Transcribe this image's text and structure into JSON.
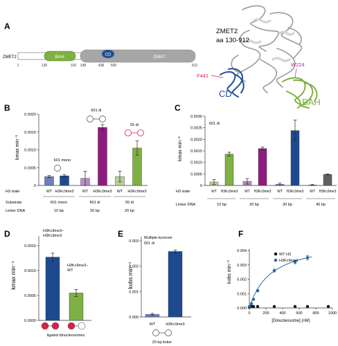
{
  "panel_letters": [
    "A",
    "B",
    "C",
    "D",
    "E",
    "F"
  ],
  "colors": {
    "bah": "#7fb043",
    "cd": "#1f4e96",
    "dnmt": "#a6a6a6",
    "wt_blue": "#6e7fbf",
    "navy": "#1d4a8f",
    "purple": "#8e1c7f",
    "light_purple": "#b38dc4",
    "green": "#7fb043",
    "light_green": "#b8cf92",
    "grey": "#606060",
    "light_grey": "#c0c0c0",
    "red_nuc": "#d8204c",
    "f441": "#d8204c",
    "w224": "#b4288a"
  },
  "panel_a": {
    "protein_name": "ZMET2",
    "domains": {
      "bah": "BAH",
      "cd": "CD",
      "dnmt": "DNMT"
    },
    "positions": [
      "1",
      "130",
      "310",
      "338",
      "438",
      "500",
      "912"
    ],
    "structure_title_1": "ZMET2",
    "structure_title_2": "aa 130-912",
    "residue_f441": "F441",
    "residue_w224": "W224",
    "label_cd": "CD",
    "label_bah": "BAH"
  },
  "panel_b": {
    "ylabel": "kmax min⁻¹",
    "y_ticks": [
      "0",
      "0.0005",
      "0.0010",
      "0.0015",
      "0.0020"
    ],
    "row_labels": {
      "h3_state": "H3 state",
      "substrate": "Substrate",
      "linker": "Linker DNA"
    },
    "annotations": {
      "mono": "601 mono",
      "di": "601 di",
      "ss": "55 di"
    },
    "groups": [
      {
        "substrate": "601 mono",
        "linker": "10 bp"
      },
      {
        "substrate": "601 di",
        "linker": "20 bp"
      },
      {
        "substrate": "55 di",
        "linker": "20 bp"
      }
    ],
    "bar_labels": [
      "WT",
      "H3Kc9me3",
      "WT",
      "H3Kc9me3",
      "WT",
      "H3Kc9me3"
    ]
  },
  "panel_c": {
    "ylabel": "kmax min⁻¹",
    "y_ticks": [
      "0",
      "0.0005",
      "0.0010",
      "0.0015",
      "0.0020",
      "0.0025",
      "0.0030"
    ],
    "annotation": "601 di",
    "row_labels": {
      "h3_state": "H3 state",
      "linker": "Linker DNA"
    },
    "linkers": [
      "10 bp",
      "20 bp",
      "30 bp",
      "40 bp"
    ],
    "bar_labels": [
      "WT",
      "H3Kc9me3",
      "WT",
      "H3Kc9me3",
      "WT",
      "H3Kc9me3",
      "WT",
      "H3Kc9me3"
    ]
  },
  "panel_d": {
    "ylabel": "kmax min⁻¹",
    "y_ticks": [
      "0.0000",
      "0.0005",
      "0.0010",
      "0.0015"
    ],
    "label_bar1_line1": "H3Kc9me3–",
    "label_bar1_line2": "H3Kc9me3",
    "label_bar2_line1": "H3Kc9me3–",
    "label_bar2_line2": "WT",
    "xlabel": "ligated dinucleosomes"
  },
  "panel_e": {
    "ylabel": "kobs min⁻¹",
    "y_ticks": [
      "0.000",
      "0.001",
      "0.002",
      "0.003"
    ],
    "annotation_line1": "Multiple-turnover",
    "annotation_line2": "601 di",
    "bar_labels": [
      "WT",
      "H3Kc9me3"
    ],
    "xlabel": "20 bp linker"
  },
  "panel_f": {
    "ylabel": "kobs min⁻¹",
    "xlabel": "[Dinucleosome] (nM)",
    "y_ticks": [
      "0.000",
      "0.001",
      "0.002",
      "0.003",
      "0.004"
    ],
    "x_ticks": [
      "0",
      "200",
      "400",
      "600",
      "800",
      "1000"
    ],
    "legend": [
      "WT H3",
      "H3Kc9me3"
    ]
  },
  "chart_data": [
    {
      "type": "bar",
      "panel": "B",
      "ylim": [
        0,
        0.002
      ],
      "categories": [
        "WT",
        "H3Kc9me3",
        "WT",
        "H3Kc9me3",
        "WT",
        "H3Kc9me3"
      ],
      "values": [
        0.00025,
        0.00027,
        0.0002,
        0.00163,
        0.00025,
        0.00105
      ],
      "errors": [
        3e-05,
        3e-05,
        0.0002,
        8e-05,
        0.00015,
        0.0002
      ],
      "colors": [
        "#6e7fbf",
        "#1d4a8f",
        "#b38dc4",
        "#8e1c7f",
        "#b8cf92",
        "#7fb043"
      ]
    },
    {
      "type": "bar",
      "panel": "C",
      "ylim": [
        0,
        0.003
      ],
      "categories": [
        "WT",
        "H3Kc9me3",
        "WT",
        "H3Kc9me3",
        "WT",
        "H3Kc9me3",
        "WT",
        "H3Kc9me3"
      ],
      "values": [
        0.00015,
        0.00136,
        0.00018,
        0.0016,
        5e-05,
        0.00238,
        2e-05,
        0.00048
      ],
      "errors": [
        0.0001,
        8e-05,
        0.00012,
        7e-05,
        5e-05,
        0.00045,
        2e-05,
        2e-05
      ],
      "colors": [
        "#b8cf92",
        "#7fb043",
        "#b38dc4",
        "#8e1c7f",
        "#6e7fbf",
        "#1d4a8f",
        "#c0c0c0",
        "#606060"
      ]
    },
    {
      "type": "bar",
      "panel": "D",
      "ylim": [
        0,
        0.0015
      ],
      "categories": [
        "H3Kc9me3–H3Kc9me3",
        "H3Kc9me3–WT"
      ],
      "values": [
        0.00127,
        0.00055
      ],
      "errors": [
        8e-05,
        7e-05
      ],
      "colors": [
        "#1d4a8f",
        "#7fb043"
      ]
    },
    {
      "type": "bar",
      "panel": "E",
      "ylim": [
        0,
        0.003
      ],
      "categories": [
        "WT",
        "H3Kc9me3"
      ],
      "values": [
        0.0001,
        0.00258
      ],
      "errors": [
        4e-05,
        6e-05
      ],
      "colors": [
        "#6e7fbf",
        "#1d4a8f"
      ]
    },
    {
      "type": "scatter",
      "panel": "F",
      "xlim": [
        0,
        1000
      ],
      "ylim": [
        0,
        0.004
      ],
      "series": [
        {
          "name": "WT H3",
          "color": "#111111",
          "x": [
            0,
            25,
            50,
            100,
            300,
            550,
            700,
            950
          ],
          "y": [
            5e-05,
            0.00012,
            0.0001,
            0.0001,
            0.0001,
            0.0001,
            0.0001,
            0.0001
          ]
        },
        {
          "name": "H3Kc9me3",
          "color": "#2a6aa0",
          "x": [
            0,
            25,
            50,
            100,
            300,
            550,
            700
          ],
          "y": [
            0.0001,
            0.0003,
            0.0006,
            0.0012,
            0.0026,
            0.0032,
            0.0035
          ],
          "errors": [
            0,
            0,
            5e-05,
            8e-05,
            0.0001,
            0.00012,
            0.00015
          ]
        }
      ],
      "fit": {
        "series": "H3Kc9me3",
        "vmax": 0.0048,
        "km": 260
      }
    }
  ]
}
